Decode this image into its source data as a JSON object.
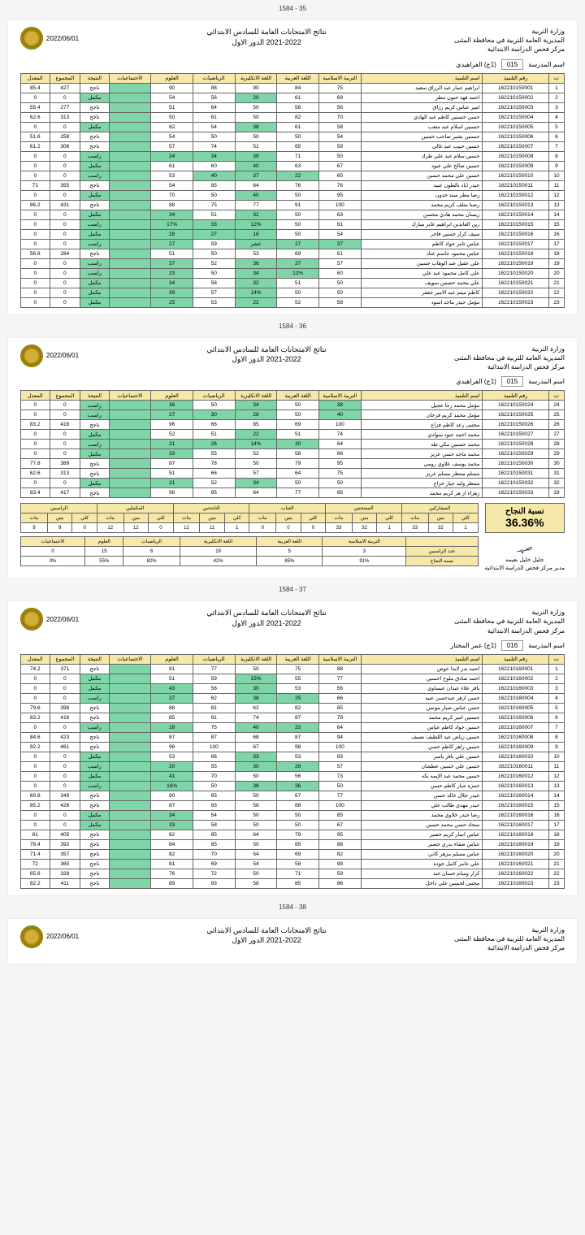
{
  "ministry": "وزارة التربية",
  "directorate": "المديرية العامة للتربية في محافظة المثنى",
  "center": "مركز فحص الدراسة الابتدائية",
  "title1": "نتائج الامتحانات  العامة للسادس الابتدائي",
  "title2": "2021-2022 الدور الاول",
  "date": "2022/06/01",
  "school_lbl": "اسم المدرسة",
  "school1_code": "015",
  "school1_name": "(1ج) الفراهيدي",
  "school2_code": "016",
  "school2_name": "(1ج) عمر المختار",
  "cols": {
    "seq": "ت",
    "id": "رقم التلميذ",
    "name": "اسم التلميذ",
    "islamic": "التربية الاسلامية",
    "arabic": "اللغة العربية",
    "english": "اللغة الانكليزية",
    "math": "الرياضيات",
    "science": "العلوم",
    "social": "الاجتماعيات",
    "result": "النتيجة",
    "total": "المجموع",
    "avg": "المعدل"
  },
  "res": {
    "pass": "ناجح",
    "fail": "راسب",
    "comp": "مكمل"
  },
  "p1": [
    {
      "n": 1,
      "id": "162210150001",
      "nm": "ابراهيم عمار عبد الرزاق سعيد",
      "s": [
        75,
        84,
        90,
        88,
        90
      ],
      "r": "pass",
      "t": 427,
      "a": 85.4
    },
    {
      "n": 2,
      "id": "162210150002",
      "nm": "احمد فهد حنون مطر",
      "s": [
        69,
        61,
        "20",
        56,
        54
      ],
      "r": "comp",
      "t": 0,
      "a": 0
    },
    {
      "n": 3,
      "id": "162210150003",
      "nm": "امير عباس كريم رزاق",
      "s": [
        56,
        56,
        50,
        64,
        51
      ],
      "r": "pass",
      "t": 277,
      "a": 55.4
    },
    {
      "n": 4,
      "id": "162210150004",
      "nm": "حسن حسنين كاظم عبد الهادي",
      "s": [
        70,
        82,
        50,
        61,
        50
      ],
      "r": "pass",
      "t": 313,
      "a": 62.6
    },
    {
      "n": 5,
      "id": "162210150005",
      "nm": "حسنين اسلام عبد متعب",
      "s": [
        58,
        61,
        "38",
        54,
        62
      ],
      "r": "comp",
      "t": 0,
      "a": 0
    },
    {
      "n": 6,
      "id": "162210150006",
      "nm": "حسنين بشير صاحب حسين",
      "s": [
        54,
        50,
        50,
        50,
        54
      ],
      "r": "pass",
      "t": 258,
      "a": 51.6
    },
    {
      "n": 7,
      "id": "162210150007",
      "nm": "حسين حبيب عبد غالي",
      "s": [
        59,
        65,
        51,
        74,
        57
      ],
      "r": "pass",
      "t": 306,
      "a": 61.2
    },
    {
      "n": 8,
      "id": "162210150008",
      "nm": "حسين سلام عبد علي طراد",
      "s": [
        50,
        71,
        "39",
        "34",
        "24"
      ],
      "r": "fail",
      "t": 0,
      "a": 0
    },
    {
      "n": 9,
      "id": "162210150009",
      "nm": "حسين صالح علي عبود",
      "s": [
        67,
        63,
        "40",
        60,
        61
      ],
      "r": "comp",
      "t": 0,
      "a": 0
    },
    {
      "n": 10,
      "id": "162210150010",
      "nm": "حسين علي محمد حسين",
      "s": [
        65,
        "22",
        "37",
        "40",
        53
      ],
      "r": "fail",
      "t": 0,
      "a": 0
    },
    {
      "n": 11,
      "id": "162210150011",
      "nm": "حيدر اياد نالطون عبيد",
      "s": [
        76,
        76,
        64,
        85,
        54
      ],
      "r": "pass",
      "t": 355,
      "a": 71
    },
    {
      "n": 12,
      "id": "162210150012",
      "nm": "رضا مطر سند جدون",
      "s": [
        95,
        50,
        "40",
        50,
        70
      ],
      "r": "comp",
      "t": 0,
      "a": 0
    },
    {
      "n": 13,
      "id": "162210150013",
      "nm": "رضنا متلف كريم محمد",
      "s": [
        100,
        91,
        77,
        75,
        88
      ],
      "r": "pass",
      "t": 431,
      "a": 86.2
    },
    {
      "n": 14,
      "id": "162210150014",
      "nm": "ريسان محمد هادي محسن",
      "s": [
        63,
        50,
        "32",
        51,
        "34"
      ],
      "r": "comp",
      "t": 0,
      "a": 0
    },
    {
      "n": 15,
      "id": "162210150015",
      "nm": "زين العابدين ابراهيم عابر مبارك",
      "s": [
        61,
        50,
        "12%",
        "33",
        "17%"
      ],
      "r": "fail",
      "t": 0,
      "a": 0
    },
    {
      "n": 16,
      "id": "162210150016",
      "nm": "سيف كرار حسين فاخر",
      "s": [
        54,
        50,
        "16",
        "27",
        "28"
      ],
      "r": "comp",
      "t": 0,
      "a": 0
    },
    {
      "n": 17,
      "id": "162210150017",
      "nm": "عباس ثامر جواد كاظم",
      "s": [
        "37",
        "27",
        "عشر",
        59,
        "27"
      ],
      "r": "fail",
      "t": 0,
      "a": 0
    },
    {
      "n": 18,
      "id": "162210150018",
      "nm": "عباس محمود جاسم عناد",
      "s": [
        61,
        69,
        53,
        50,
        51
      ],
      "r": "pass",
      "t": 284,
      "a": 56.8
    },
    {
      "n": 19,
      "id": "162210150019",
      "nm": "علي عقيل عبد الوهاب حسين",
      "s": [
        57,
        "37",
        "36",
        52,
        "37"
      ],
      "r": "fail",
      "t": 0,
      "a": 0
    },
    {
      "n": 20,
      "id": "162210150020",
      "nm": "علي كامل محمود عبد علي",
      "s": [
        60,
        "12%",
        "34",
        50,
        "23"
      ],
      "r": "fail",
      "t": 0,
      "a": 0
    },
    {
      "n": 21,
      "id": "162210150021",
      "nm": "علي محمد حصنين سويف",
      "s": [
        50,
        51,
        "32",
        58,
        "34"
      ],
      "r": "comp",
      "t": 0,
      "a": 0
    },
    {
      "n": 22,
      "id": "162210150022",
      "nm": "كاظم ميثم عبد الامير جعفر",
      "s": [
        50,
        50,
        "14%",
        57,
        "39"
      ],
      "r": "comp",
      "t": 0,
      "a": 0
    },
    {
      "n": 23,
      "id": "162210150023",
      "nm": "مؤمل حيدر ماجد اسود",
      "s": [
        58,
        52,
        "22",
        53,
        "25"
      ],
      "r": "comp",
      "t": 0,
      "a": 0
    }
  ],
  "p2": [
    {
      "n": 24,
      "id": "162210150024",
      "nm": "مؤمل محمد رجا عجيل",
      "s": [
        "38",
        50,
        "34",
        50,
        "36"
      ],
      "r": "fail",
      "t": 0,
      "a": 0
    },
    {
      "n": 25,
      "id": "162210150025",
      "nm": "مؤمل محمد كريم فرحان",
      "s": [
        "40",
        50,
        "28",
        "30",
        "27"
      ],
      "r": "fail",
      "t": 0,
      "a": 0
    },
    {
      "n": 26,
      "id": "162210150026",
      "nm": "مجتبى رعد كاظم فزاع",
      "s": [
        100,
        69,
        85,
        66,
        96
      ],
      "r": "pass",
      "t": 416,
      "a": 83.2
    },
    {
      "n": 27,
      "id": "162210150027",
      "nm": "محمد احمد عبود سوادي",
      "s": [
        74,
        51,
        "22",
        51,
        52
      ],
      "r": "comp",
      "t": 0,
      "a": 0
    },
    {
      "n": 28,
      "id": "162210150028",
      "nm": "محمد حسنين مكي طه",
      "s": [
        64,
        "30",
        "14%",
        "26",
        "21"
      ],
      "r": "fail",
      "t": 0,
      "a": 0
    },
    {
      "n": 29,
      "id": "162210150029",
      "nm": "محمد ماجد حسن عزيز",
      "s": [
        66,
        58,
        52,
        55,
        "33"
      ],
      "r": "comp",
      "t": 0,
      "a": 0
    },
    {
      "n": 30,
      "id": "162210150030",
      "nm": "محمد يوسف علاوي  رومي",
      "s": [
        95,
        79,
        50,
        78,
        87
      ],
      "r": "pass",
      "t": 389,
      "a": 77.8
    },
    {
      "n": 31,
      "id": "162210150031",
      "nm": "مسلم منتظر مسلم عزيز",
      "s": [
        75,
        64,
        57,
        66,
        51
      ],
      "r": "pass",
      "t": 313,
      "a": 62.6
    },
    {
      "n": 32,
      "id": "162210150032",
      "nm": "منتظر وليد جبار خزاع",
      "s": [
        50,
        50,
        "34",
        52,
        "21"
      ],
      "r": "comp",
      "t": 0,
      "a": 0
    },
    {
      "n": 33,
      "id": "162210150033",
      "nm": "زهراء از هر كريم محمد",
      "s": [
        85,
        77,
        64,
        95,
        96
      ],
      "r": "pass",
      "t": 417,
      "a": 83.4
    }
  ],
  "pass_lbl": "نسبة النجاح",
  "pass_pct": "36.36%",
  "sum_hdrs": [
    "المشاركين",
    "الممتحنين",
    "الغياب",
    "الناجحين",
    "المكملين",
    "الراسبين"
  ],
  "sum_sub": [
    "كلي",
    "بنين",
    "بنات"
  ],
  "sum_data": [
    [
      1,
      32,
      33
    ],
    [
      1,
      32,
      33
    ],
    [
      0,
      0,
      0
    ],
    [
      1,
      11,
      12
    ],
    [
      0,
      12,
      12
    ],
    [
      0,
      9,
      9
    ]
  ],
  "fail_row_lbl": "عدد الراسبين",
  "pass_row_lbl": "نسبة النجاح",
  "subj_labels": [
    "التربية الاسلامية",
    "اللغة العربية",
    "اللغة الانكليزية",
    "الرياضيات",
    "العلوم",
    "الاجتماعيات"
  ],
  "fail_row": [
    3,
    5,
    19,
    6,
    15,
    0
  ],
  "pass_row": [
    "91%",
    "85%",
    "42%",
    "82%",
    "55%",
    "0%"
  ],
  "signer": "جليل خليل نعيمه",
  "signer_title": "مدير مركز فحص الدراسة الابتدائية",
  "p3": [
    {
      "n": 1,
      "id": "162210160001",
      "nm": "احمد بدر لايذا عوض",
      "s": [
        88,
        75,
        50,
        77,
        81
      ],
      "r": "pass",
      "t": 371,
      "a": 74.2
    },
    {
      "n": 2,
      "id": "162210160002",
      "nm": "احمد صادق ملوح احسين",
      "s": [
        77,
        55,
        "15%",
        59,
        51
      ],
      "r": "comp",
      "t": 0,
      "a": 0
    },
    {
      "n": 3,
      "id": "162210160003",
      "nm": "باقر علاء عبدان عبساوي",
      "s": [
        56,
        53,
        "30",
        56,
        "43"
      ],
      "r": "comp",
      "t": 0,
      "a": 0
    },
    {
      "n": 4,
      "id": "162210160004",
      "nm": "حسن ازهر عبدحسن عبيد",
      "s": [
        66,
        "25",
        "38",
        62,
        "37"
      ],
      "r": "fail",
      "t": 0,
      "a": 0
    },
    {
      "n": 5,
      "id": "162210160005",
      "nm": "حسن عباس صبار مونس",
      "s": [
        85,
        82,
        62,
        81,
        88
      ],
      "r": "pass",
      "t": 398,
      "a": 79.6
    },
    {
      "n": 6,
      "id": "162210160006",
      "nm": "حسنين امير كريم محمد",
      "s": [
        79,
        87,
        74,
        91,
        85
      ],
      "r": "pass",
      "t": 416,
      "a": 83.2
    },
    {
      "n": 7,
      "id": "162210160007",
      "nm": "حسين جواد كاظم عباس",
      "s": [
        64,
        "33",
        "40",
        75,
        "28"
      ],
      "r": "fail",
      "t": 0,
      "a": 0
    },
    {
      "n": 8,
      "id": "162210160008",
      "nm": "حسين رياض عبد اللطيف نصيف",
      "s": [
        94,
        87,
        68,
        87,
        87
      ],
      "r": "pass",
      "t": 423,
      "a": 84.6
    },
    {
      "n": 9,
      "id": "162210160009",
      "nm": "حسين زاهر كاظم حسن",
      "s": [
        100,
        98,
        67,
        100,
        96
      ],
      "r": "pass",
      "t": 461,
      "a": 92.2
    },
    {
      "n": 10,
      "id": "162210160010",
      "nm": "حسين علي باقر ياسر",
      "s": [
        83,
        53,
        "33",
        66,
        53
      ],
      "r": "comp",
      "t": 0,
      "a": 0
    },
    {
      "n": 11,
      "id": "162210160011",
      "nm": "حسين علي حسين عطشان",
      "s": [
        57,
        "28",
        "30",
        55,
        "20"
      ],
      "r": "fail",
      "t": 0,
      "a": 0
    },
    {
      "n": 12,
      "id": "162210160012",
      "nm": "حسين محمد عبد الإيمه بكه",
      "s": [
        73,
        56,
        50,
        70,
        "41"
      ],
      "r": "comp",
      "t": 0,
      "a": 0
    },
    {
      "n": 13,
      "id": "162210160013",
      "nm": "حمزه جبار كاظم حسن",
      "s": [
        50,
        "36",
        "38",
        50,
        "16%"
      ],
      "r": "fail",
      "t": 0,
      "a": 0
    },
    {
      "n": 14,
      "id": "162210160014",
      "nm": "حيدر جلال خالد حسن",
      "s": [
        77,
        67,
        50,
        65,
        90
      ],
      "r": "pass",
      "t": 349,
      "a": 69.8
    },
    {
      "n": 15,
      "id": "162210160015",
      "nm": "حيدر مهدي طالب علي",
      "s": [
        100,
        88,
        58,
        93,
        87
      ],
      "r": "pass",
      "t": 426,
      "a": 85.2
    },
    {
      "n": 16,
      "id": "162210160016",
      "nm": "رضا حيدر خلاوي محمد",
      "s": [
        85,
        50,
        50,
        54,
        "34"
      ],
      "r": "comp",
      "t": 0,
      "a": 0
    },
    {
      "n": 17,
      "id": "162210160017",
      "nm": "سجاد حسن محمد حسين",
      "s": [
        67,
        50,
        50,
        58,
        "33"
      ],
      "r": "comp",
      "t": 0,
      "a": 0
    },
    {
      "n": 18,
      "id": "162210160018",
      "nm": "عباس انمار كريم خضير",
      "s": [
        95,
        79,
        64,
        85,
        82
      ],
      "r": "pass",
      "t": 405,
      "a": 81
    },
    {
      "n": 19,
      "id": "162210160019",
      "nm": "عباس صفاء بدري حضير",
      "s": [
        88,
        85,
        50,
        85,
        84
      ],
      "r": "pass",
      "t": 392,
      "a": 78.4
    },
    {
      "n": 20,
      "id": "162210160020",
      "nm": "عباس مسلم مزهر كاني",
      "s": [
        82,
        69,
        54,
        70,
        82
      ],
      "r": "pass",
      "t": 357,
      "a": 71.4
    },
    {
      "n": 21,
      "id": "162210160021",
      "nm": "علي عامر كامل جوده",
      "s": [
        98,
        58,
        54,
        69,
        81
      ],
      "r": "pass",
      "t": 360,
      "a": 72
    },
    {
      "n": 22,
      "id": "162210160022",
      "nm": "كرار وسام حسان عبد",
      "s": [
        59,
        71,
        50,
        72,
        76
      ],
      "r": "pass",
      "t": 328,
      "a": 65.6
    },
    {
      "n": 23,
      "id": "162210160023",
      "nm": "مجتبى لحسين علي داخل",
      "s": [
        86,
        85,
        58,
        93,
        89
      ],
      "r": "pass",
      "t": 411,
      "a": 82.2
    }
  ],
  "pages": [
    "35 - 1584",
    "36 - 1584",
    "37 - 1584",
    "38 - 1584"
  ]
}
